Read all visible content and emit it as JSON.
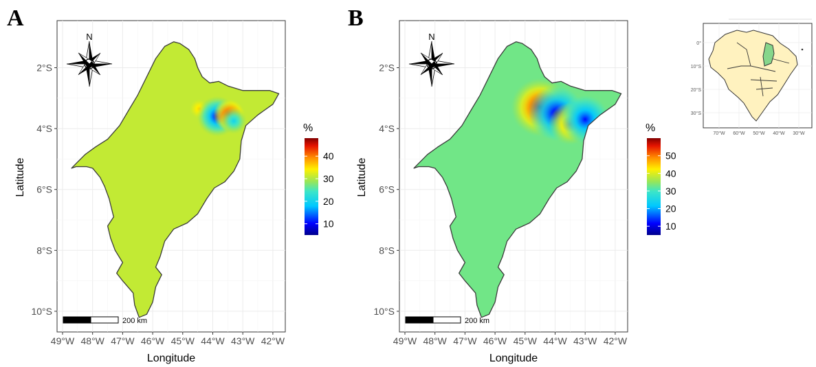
{
  "panels": [
    {
      "letter": "A",
      "x_label": "Longitude",
      "y_label": "Latitude",
      "x_ticks": [
        "49°W",
        "48°W",
        "47°W",
        "46°W",
        "45°W",
        "44°W",
        "43°W",
        "42°W"
      ],
      "y_ticks": [
        "2°S",
        "4°S",
        "6°S",
        "8°S",
        "10°S"
      ],
      "legend": {
        "title": "%",
        "ticks": [
          "10",
          "20",
          "30",
          "40"
        ],
        "range": [
          5,
          48
        ]
      },
      "north": "N",
      "scale_label": "200 km",
      "background_value_pct": 31,
      "hotspots": [
        {
          "lon": -44.45,
          "lat": -3.35,
          "value_pct": 36
        },
        {
          "lon": -43.85,
          "lat": -3.6,
          "value_pct": 8
        },
        {
          "lon": -43.45,
          "lat": -3.55,
          "value_pct": 46
        },
        {
          "lon": -43.3,
          "lat": -3.75,
          "value_pct": 20
        }
      ]
    },
    {
      "letter": "B",
      "x_label": "Longitude",
      "y_label": "Latitude",
      "x_ticks": [
        "49°W",
        "48°W",
        "47°W",
        "46°W",
        "45°W",
        "44°W",
        "43°W",
        "42°W"
      ],
      "y_ticks": [
        "2°S",
        "4°S",
        "6°S",
        "8°S",
        "10°S"
      ],
      "legend": {
        "title": "%",
        "ticks": [
          "10",
          "20",
          "30",
          "40",
          "50"
        ],
        "range": [
          5,
          60
        ]
      },
      "north": "N",
      "scale_label": "200 km",
      "background_value_pct": 33,
      "hotspots": [
        {
          "lon": -44.5,
          "lat": -3.3,
          "value_pct": 60
        },
        {
          "lon": -43.95,
          "lat": -3.5,
          "value_pct": 8
        },
        {
          "lon": -43.5,
          "lat": -3.85,
          "value_pct": 50
        },
        {
          "lon": -43.0,
          "lat": -3.7,
          "value_pct": 12
        }
      ]
    }
  ],
  "inset": {
    "x_ticks": [
      "70°W",
      "60°W",
      "50°W",
      "40°W",
      "30°W"
    ],
    "y_ticks": [
      "0°",
      "10°S",
      "20°S",
      "30°S"
    ],
    "country_fill": "#fff2bf",
    "highlight_fill": "#86d68b"
  }
}
